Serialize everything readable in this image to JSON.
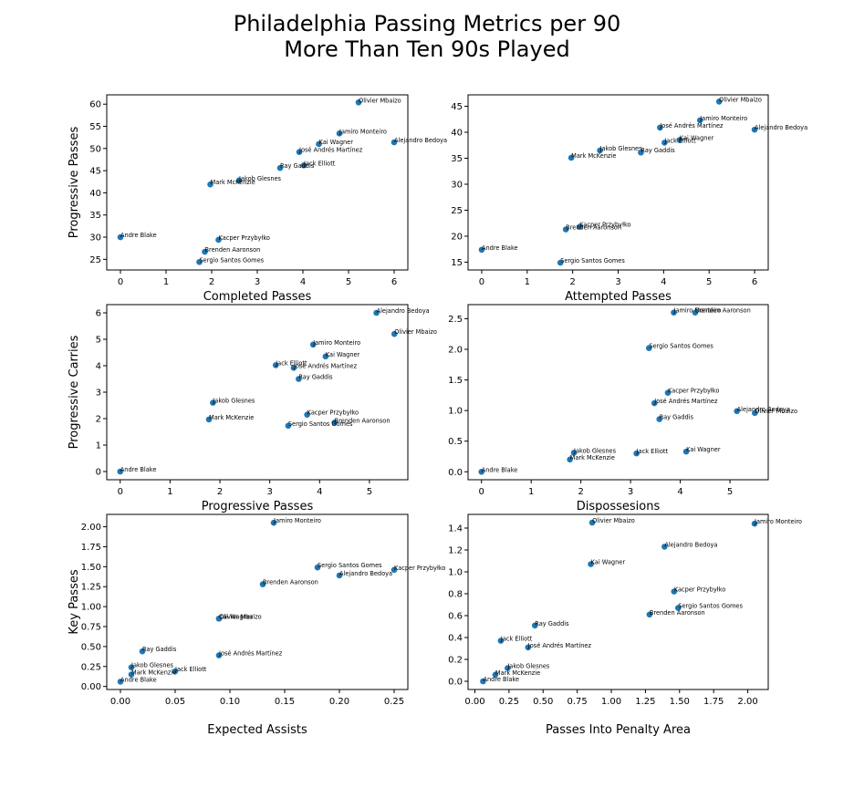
{
  "title_line1": "Philadelphia Passing Metrics per 90",
  "title_line2": "More Than Ten 90s Played",
  "point_color": "#1f77b4",
  "chart_data": [
    {
      "type": "scatter",
      "xlabel": "Completed Passes",
      "ylabel": "Progressive Passes",
      "xlim": [
        -0.3,
        6.3
      ],
      "ylim": [
        22.6,
        62.1
      ],
      "xticks": [
        0,
        1,
        2,
        3,
        4,
        5,
        6
      ],
      "yticks": [
        25,
        30,
        35,
        40,
        45,
        50,
        55,
        60
      ],
      "xtick_labels": [
        "0",
        "1",
        "2",
        "3",
        "4",
        "5",
        "6"
      ],
      "ytick_labels": [
        "25",
        "30",
        "35",
        "40",
        "45",
        "50",
        "55",
        "60"
      ],
      "points": [
        {
          "label": "Olivier Mbaizo",
          "x": 5.22,
          "y": 60.4
        },
        {
          "label": "Jamiro Monteiro",
          "x": 4.8,
          "y": 53.4
        },
        {
          "label": "Alejandro Bedoya",
          "x": 6.0,
          "y": 51.4
        },
        {
          "label": "Kai Wagner",
          "x": 4.35,
          "y": 51.0
        },
        {
          "label": "José Andrés Martínez",
          "x": 3.92,
          "y": 49.2
        },
        {
          "label": "Jack Elliott",
          "x": 4.02,
          "y": 46.2
        },
        {
          "label": "Ray Gaddis",
          "x": 3.5,
          "y": 45.6
        },
        {
          "label": "Jakob Glesnes",
          "x": 2.6,
          "y": 42.8
        },
        {
          "label": "Mark McKenzie",
          "x": 1.97,
          "y": 41.9
        },
        {
          "label": "Andre Blake",
          "x": 0.0,
          "y": 30.0
        },
        {
          "label": "Kacper Przybyłko",
          "x": 2.15,
          "y": 29.4
        },
        {
          "label": "Brenden Aaronson",
          "x": 1.85,
          "y": 26.7
        },
        {
          "label": "Sergio Santos Gomes",
          "x": 1.73,
          "y": 24.4
        }
      ]
    },
    {
      "type": "scatter",
      "xlabel": "Attempted Passes",
      "ylabel": "",
      "xlim": [
        -0.3,
        6.3
      ],
      "ylim": [
        13.5,
        47.2
      ],
      "xticks": [
        0,
        1,
        2,
        3,
        4,
        5,
        6
      ],
      "yticks": [
        15,
        20,
        25,
        30,
        35,
        40,
        45
      ],
      "xtick_labels": [
        "0",
        "1",
        "2",
        "3",
        "4",
        "5",
        "6"
      ],
      "ytick_labels": [
        "15",
        "20",
        "25",
        "30",
        "35",
        "40",
        "45"
      ],
      "points": [
        {
          "label": "Olivier Mbaizo",
          "x": 5.22,
          "y": 45.9
        },
        {
          "label": "Jamiro Monteiro",
          "x": 4.8,
          "y": 42.3
        },
        {
          "label": "José Andrés Martínez",
          "x": 3.92,
          "y": 40.9
        },
        {
          "label": "Alejandro Bedoya",
          "x": 6.0,
          "y": 40.5
        },
        {
          "label": "Kai Wagner",
          "x": 4.35,
          "y": 38.5
        },
        {
          "label": "Jack Elliott",
          "x": 4.02,
          "y": 38.0
        },
        {
          "label": "Jakob Glesnes",
          "x": 2.6,
          "y": 36.5
        },
        {
          "label": "Ray Gaddis",
          "x": 3.5,
          "y": 36.1
        },
        {
          "label": "Mark McKenzie",
          "x": 1.97,
          "y": 35.1
        },
        {
          "label": "Kacper Przybyłko",
          "x": 2.15,
          "y": 21.8
        },
        {
          "label": "Brenden Aaronson",
          "x": 1.85,
          "y": 21.3
        },
        {
          "label": "Andre Blake",
          "x": 0.0,
          "y": 17.4
        },
        {
          "label": "Sergio Santos Gomes",
          "x": 1.73,
          "y": 14.9
        }
      ]
    },
    {
      "type": "scatter",
      "xlabel": "Progressive Passes",
      "ylabel": "Progressive Carries",
      "xlim": [
        -0.27,
        5.77
      ],
      "ylim": [
        -0.31,
        6.31
      ],
      "xticks": [
        0,
        1,
        2,
        3,
        4,
        5
      ],
      "yticks": [
        0,
        1,
        2,
        3,
        4,
        5,
        6
      ],
      "xtick_labels": [
        "0",
        "1",
        "2",
        "3",
        "4",
        "5"
      ],
      "ytick_labels": [
        "0",
        "1",
        "2",
        "3",
        "4",
        "5",
        "6"
      ],
      "points": [
        {
          "label": "Alejandro Bedoya",
          "x": 5.14,
          "y": 6.0
        },
        {
          "label": "Olivier Mbaizo",
          "x": 5.5,
          "y": 5.2
        },
        {
          "label": "Jamiro Monteiro",
          "x": 3.87,
          "y": 4.8
        },
        {
          "label": "Kai Wagner",
          "x": 4.12,
          "y": 4.35
        },
        {
          "label": "Jack Elliott",
          "x": 3.12,
          "y": 4.02
        },
        {
          "label": "José Andrés Martínez",
          "x": 3.48,
          "y": 3.92
        },
        {
          "label": "Ray Gaddis",
          "x": 3.58,
          "y": 3.5
        },
        {
          "label": "Jakob Glesnes",
          "x": 1.86,
          "y": 2.6
        },
        {
          "label": "Kacper Przybyłko",
          "x": 3.75,
          "y": 2.15
        },
        {
          "label": "Mark McKenzie",
          "x": 1.78,
          "y": 1.97
        },
        {
          "label": "Brenden Aaronson",
          "x": 4.3,
          "y": 1.85
        },
        {
          "label": "Sergio Santos Gomes",
          "x": 3.37,
          "y": 1.73
        },
        {
          "label": "Andre Blake",
          "x": 0.0,
          "y": 0.0
        }
      ]
    },
    {
      "type": "scatter",
      "xlabel": "Dispossesions",
      "ylabel": "",
      "xlim": [
        -0.27,
        5.77
      ],
      "ylim": [
        -0.13,
        2.73
      ],
      "xticks": [
        0,
        1,
        2,
        3,
        4,
        5
      ],
      "yticks": [
        0.0,
        0.5,
        1.0,
        1.5,
        2.0,
        2.5
      ],
      "xtick_labels": [
        "0",
        "1",
        "2",
        "3",
        "4",
        "5"
      ],
      "ytick_labels": [
        "0.0",
        "0.5",
        "1.0",
        "1.5",
        "2.0",
        "2.5"
      ],
      "points": [
        {
          "label": "Jamiro Monteiro",
          "x": 3.87,
          "y": 2.6
        },
        {
          "label": "Brenden Aaronson",
          "x": 4.3,
          "y": 2.6
        },
        {
          "label": "Sergio Santos Gomes",
          "x": 3.37,
          "y": 2.02
        },
        {
          "label": "Kacper Przybyłko",
          "x": 3.75,
          "y": 1.29
        },
        {
          "label": "José Andrés Martínez",
          "x": 3.48,
          "y": 1.12
        },
        {
          "label": "Alejandro Bedoya",
          "x": 5.14,
          "y": 0.99
        },
        {
          "label": "Olivier Mbaizo",
          "x": 5.5,
          "y": 0.96
        },
        {
          "label": "Ray Gaddis",
          "x": 3.58,
          "y": 0.86
        },
        {
          "label": "Kai Wagner",
          "x": 4.12,
          "y": 0.33
        },
        {
          "label": "Jakob Glesnes",
          "x": 1.86,
          "y": 0.31
        },
        {
          "label": "Jack Elliott",
          "x": 3.12,
          "y": 0.3
        },
        {
          "label": "Mark McKenzie",
          "x": 1.78,
          "y": 0.2
        },
        {
          "label": "Andre Blake",
          "x": 0.0,
          "y": 0.0
        }
      ]
    },
    {
      "type": "scatter",
      "xlabel": "Expected Assists",
      "ylabel": "Key Passes",
      "xlim": [
        -0.0125,
        0.2625
      ],
      "ylim": [
        -0.038,
        2.155
      ],
      "xticks": [
        0.0,
        0.05,
        0.1,
        0.15,
        0.2,
        0.25
      ],
      "yticks": [
        0.0,
        0.25,
        0.5,
        0.75,
        1.0,
        1.25,
        1.5,
        1.75,
        2.0
      ],
      "xtick_labels": [
        "0.00",
        "0.05",
        "0.10",
        "0.15",
        "0.20",
        "0.25"
      ],
      "ytick_labels": [
        "0.00",
        "0.25",
        "0.50",
        "0.75",
        "1.00",
        "1.25",
        "1.50",
        "1.75",
        "2.00"
      ],
      "points": [
        {
          "label": "Jamiro Monteiro",
          "x": 0.14,
          "y": 2.05
        },
        {
          "label": "Sergio Santos Gomes",
          "x": 0.18,
          "y": 1.49
        },
        {
          "label": "Kacper Przybyłko",
          "x": 0.25,
          "y": 1.46
        },
        {
          "label": "Alejandro Bedoya",
          "x": 0.2,
          "y": 1.39
        },
        {
          "label": "Brenden Aaronson",
          "x": 0.13,
          "y": 1.28
        },
        {
          "label": "Kai Wagner",
          "x": 0.09,
          "y": 0.85
        },
        {
          "label": "Olivier Mbaizo",
          "x": 0.09,
          "y": 0.85
        },
        {
          "label": "Ray Gaddis",
          "x": 0.02,
          "y": 0.44
        },
        {
          "label": "José Andrés Martínez",
          "x": 0.09,
          "y": 0.39
        },
        {
          "label": "Jakob Glesnes",
          "x": 0.01,
          "y": 0.24
        },
        {
          "label": "Jack Elliott",
          "x": 0.05,
          "y": 0.19
        },
        {
          "label": "Mark McKenzie",
          "x": 0.01,
          "y": 0.15
        },
        {
          "label": "Andre Blake",
          "x": 0.0,
          "y": 0.06
        }
      ]
    },
    {
      "type": "scatter",
      "xlabel": "Passes Into Penalty Area",
      "ylabel": "",
      "xlim": [
        -0.05,
        2.15
      ],
      "ylim": [
        -0.075,
        1.525
      ],
      "xticks": [
        0.0,
        0.25,
        0.5,
        0.75,
        1.0,
        1.25,
        1.5,
        1.75,
        2.0
      ],
      "yticks": [
        0.0,
        0.2,
        0.4,
        0.6,
        0.8,
        1.0,
        1.2,
        1.4
      ],
      "xtick_labels": [
        "0.00",
        "0.25",
        "0.50",
        "0.75",
        "1.00",
        "1.25",
        "1.50",
        "1.75",
        "2.00"
      ],
      "ytick_labels": [
        "0.0",
        "0.2",
        "0.4",
        "0.6",
        "0.8",
        "1.0",
        "1.2",
        "1.4"
      ],
      "points": [
        {
          "label": "Olivier Mbaizo",
          "x": 0.86,
          "y": 1.45
        },
        {
          "label": "Jamiro Monteiro",
          "x": 2.05,
          "y": 1.44
        },
        {
          "label": "Alejandro Bedoya",
          "x": 1.39,
          "y": 1.23
        },
        {
          "label": "Kai Wagner",
          "x": 0.85,
          "y": 1.07
        },
        {
          "label": "Kacper Przybyłko",
          "x": 1.46,
          "y": 0.82
        },
        {
          "label": "Sergio Santos Gomes",
          "x": 1.49,
          "y": 0.67
        },
        {
          "label": "Brenden Aaronson",
          "x": 1.28,
          "y": 0.61
        },
        {
          "label": "Ray Gaddis",
          "x": 0.44,
          "y": 0.51
        },
        {
          "label": "Jack Elliott",
          "x": 0.19,
          "y": 0.37
        },
        {
          "label": "José Andrés Martínez",
          "x": 0.39,
          "y": 0.31
        },
        {
          "label": "Jakob Glesnes",
          "x": 0.24,
          "y": 0.12
        },
        {
          "label": "Mark McKenzie",
          "x": 0.15,
          "y": 0.06
        },
        {
          "label": "Andre Blake",
          "x": 0.06,
          "y": 0.0
        }
      ]
    }
  ]
}
